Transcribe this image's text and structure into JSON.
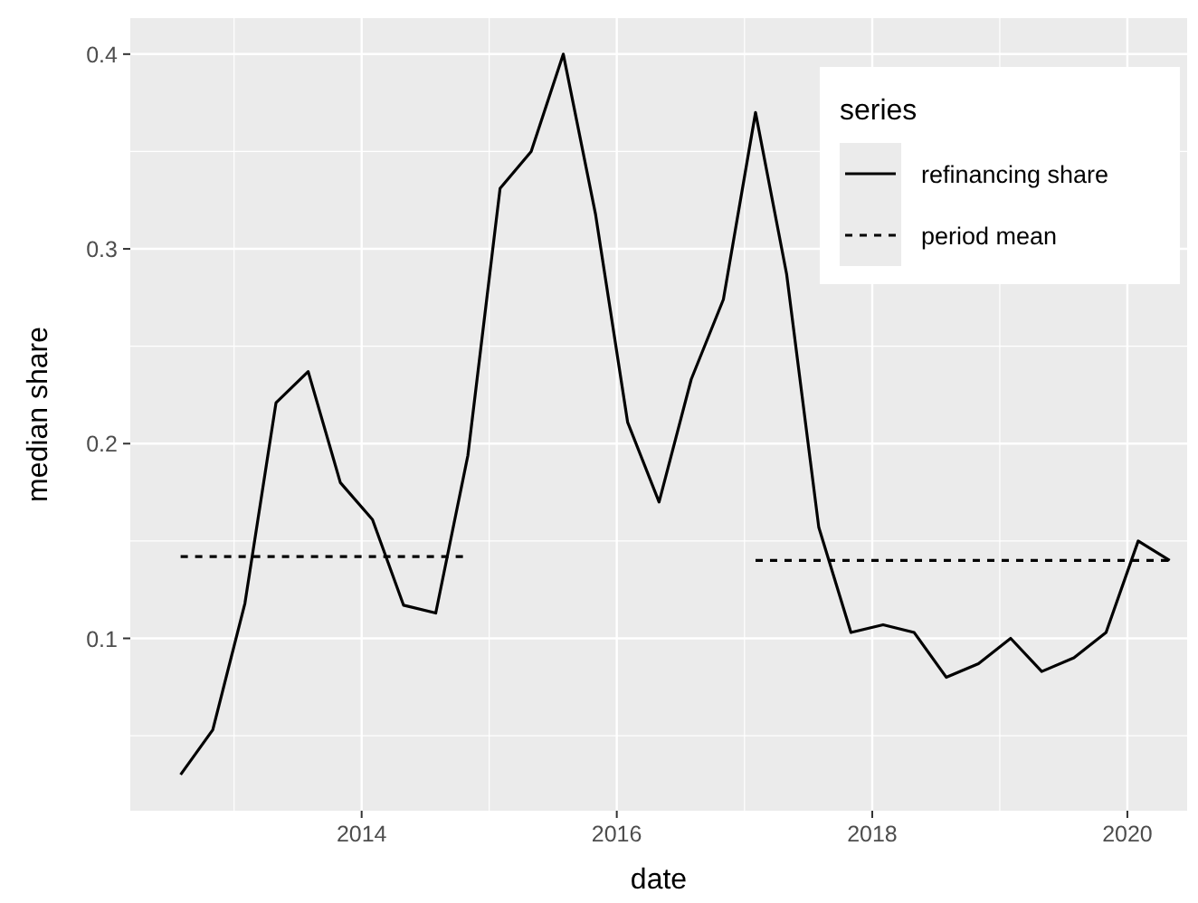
{
  "chart_data": {
    "type": "line",
    "xlabel": "date",
    "ylabel": "median share",
    "legend_title": "series",
    "legend": "top right",
    "grid": true,
    "xlim": [
      "2012-03-10",
      "2020-06-20"
    ],
    "ylim": [
      0.0115,
      0.4185
    ],
    "xticks": [
      {
        "value": "2014-01-01",
        "label": "2014"
      },
      {
        "value": "2016-01-01",
        "label": "2016"
      },
      {
        "value": "2018-01-01",
        "label": "2018"
      },
      {
        "value": "2020-01-01",
        "label": "2020"
      }
    ],
    "yticks": [
      0.1,
      0.2,
      0.3,
      0.4
    ],
    "series": [
      {
        "name": "refinancing share",
        "color": "#000000",
        "line_style": "solid",
        "x": [
          "2012-08-01",
          "2012-11-01",
          "2013-02-01",
          "2013-05-01",
          "2013-08-01",
          "2013-11-01",
          "2014-02-01",
          "2014-05-01",
          "2014-08-01",
          "2014-11-01",
          "2015-02-01",
          "2015-05-01",
          "2015-08-01",
          "2015-11-01",
          "2016-02-01",
          "2016-05-01",
          "2016-08-01",
          "2016-11-01",
          "2017-02-01",
          "2017-05-01",
          "2017-08-01",
          "2017-11-01",
          "2018-02-01",
          "2018-05-01",
          "2018-08-01",
          "2018-11-01",
          "2019-02-01",
          "2019-05-01",
          "2019-08-01",
          "2019-11-01",
          "2020-02-01",
          "2020-05-01"
        ],
        "values": [
          0.03,
          0.053,
          0.118,
          0.221,
          0.237,
          0.18,
          0.161,
          0.117,
          0.113,
          0.194,
          0.331,
          0.35,
          0.4,
          0.318,
          0.211,
          0.17,
          0.233,
          0.274,
          0.37,
          0.287,
          0.157,
          0.103,
          0.107,
          0.103,
          0.08,
          0.087,
          0.1,
          0.083,
          0.09,
          0.103,
          0.15,
          0.14
        ]
      },
      {
        "name": "period mean",
        "color": "#000000",
        "line_style": "dashed",
        "x": [
          "2012-08-01",
          "2014-11-01",
          "2016-01-01",
          "2017-02-01",
          "2020-05-01"
        ],
        "values": [
          0.142,
          0.142,
          null,
          0.14,
          0.14
        ]
      }
    ]
  }
}
